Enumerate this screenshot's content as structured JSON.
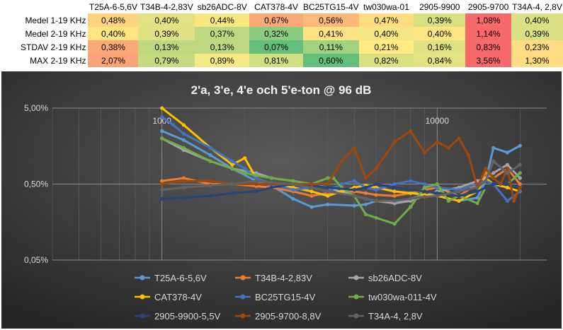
{
  "table": {
    "columns": [
      "T25A-6-5,6V",
      "T34B-4-2,83V",
      "sb26ADC-8V",
      "CAT378-4V",
      "BC25TG15-4V",
      "tw030wa-01",
      "2905-9900",
      "2905-9700",
      "T34A-4, 2,8V"
    ],
    "rows": [
      {
        "label": "Medel 1-19 KHz",
        "values": [
          "0,48%",
          "0,40%",
          "0,44%",
          "0,67%",
          "0,56%",
          "0,47%",
          "0,39%",
          "1,08%",
          "0,40%"
        ],
        "colors": [
          "#fdd37f",
          "#e3e283",
          "#f6e783",
          "#f9a977",
          "#fbb879",
          "#fedd81",
          "#d9e082",
          "#f8696b",
          "#dbe182"
        ]
      },
      {
        "label": "Medel 2-19 KHz",
        "values": [
          "0,40%",
          "0,39%",
          "0,37%",
          "0,32%",
          "0,41%",
          "0,40%",
          "0,40%",
          "1,14%",
          "0,39%"
        ],
        "colors": [
          "#fee582",
          "#dfe183",
          "#bdd881",
          "#8ccc7e",
          "#ffe283",
          "#f4e783",
          "#ffe483",
          "#f8696b",
          "#d7e082"
        ]
      },
      {
        "label": "STDAV 2-19 KHz",
        "values": [
          "0,38%",
          "0,13%",
          "0,13%",
          "0,07%",
          "0,11%",
          "0,21%",
          "0,16%",
          "0,83%",
          "0,23%"
        ],
        "colors": [
          "#fbaa77",
          "#bed881",
          "#bdd881",
          "#63be7b",
          "#a1d27f",
          "#feeb84",
          "#dfe182",
          "#f8696b",
          "#fedc81"
        ]
      },
      {
        "label": "MAX 2-19 KHz",
        "values": [
          "2,07%",
          "0,79%",
          "0,89%",
          "0,81%",
          "0,60%",
          "0,82%",
          "0,84%",
          "3,56%",
          "1,30%"
        ],
        "colors": [
          "#fba276",
          "#c5da81",
          "#f5e984",
          "#d1df82",
          "#63be7b",
          "#dbe182",
          "#e4e383",
          "#f8696b",
          "#fedd81"
        ]
      }
    ]
  },
  "chart_data": {
    "type": "line",
    "title": "2'a, 3'e, 4'e och 5'e-ton @ 96 dB",
    "xlabel": "",
    "ylabel": "",
    "x_scale": "log",
    "y_scale": "log",
    "xlim": [
      400,
      25000
    ],
    "ylim": [
      0.05,
      5
    ],
    "xticks": [
      1000,
      10000
    ],
    "xtick_labels": [
      "1000",
      "10000"
    ],
    "yticks": [
      5.0,
      0.5,
      0.05
    ],
    "ytick_labels": [
      "5,00%",
      "0,50%",
      "0,05%"
    ],
    "grid": true,
    "legend_position": "bottom",
    "series": [
      {
        "name": "T25A-6-5,6V",
        "color": "#5b9bd5",
        "x": [
          1000,
          1200,
          1500,
          1800,
          2200,
          2500,
          3000,
          3500,
          4000,
          5000,
          5500,
          6000,
          7000,
          8000,
          9000,
          10000,
          12000,
          14000,
          15000,
          16000,
          18000,
          20000
        ],
        "y": [
          2.5,
          1.9,
          1.2,
          0.8,
          0.55,
          0.48,
          0.32,
          0.25,
          0.27,
          0.26,
          0.27,
          0.3,
          0.28,
          0.32,
          0.36,
          0.35,
          0.3,
          0.33,
          0.55,
          1.5,
          1.3,
          1.6
        ]
      },
      {
        "name": "T34B-4-2,83V",
        "color": "#ed7d31",
        "x": [
          1000,
          1200,
          1500,
          1800,
          2200,
          2500,
          3000,
          3500,
          4000,
          5000,
          5500,
          6000,
          7000,
          8000,
          9000,
          10000,
          12000,
          14000,
          15000,
          16000,
          18000,
          20000
        ],
        "y": [
          0.55,
          0.6,
          0.5,
          0.5,
          0.47,
          0.45,
          0.4,
          0.35,
          0.38,
          0.4,
          0.38,
          0.36,
          0.35,
          0.38,
          0.42,
          0.45,
          0.35,
          0.5,
          0.7,
          0.6,
          0.8,
          0.5
        ]
      },
      {
        "name": "sb26ADC-8V",
        "color": "#a5a5a5",
        "x": [
          1000,
          1200,
          1500,
          1800,
          2200,
          2500,
          3000,
          3500,
          4000,
          5000,
          5500,
          6000,
          7000,
          8000,
          9000,
          10000,
          12000,
          14000,
          15000,
          16000,
          18000,
          20000
        ],
        "y": [
          2.0,
          1.4,
          1.0,
          0.8,
          0.7,
          0.6,
          0.55,
          0.5,
          0.45,
          0.35,
          0.32,
          0.3,
          0.28,
          0.3,
          0.35,
          0.4,
          0.45,
          0.55,
          0.6,
          0.7,
          0.9,
          0.6
        ]
      },
      {
        "name": "CAT378-4V",
        "color": "#ffc000",
        "x": [
          1000,
          1200,
          1500,
          1800,
          2000,
          2200,
          2500,
          3000,
          3500,
          4000,
          4500,
          5000,
          5500,
          6000,
          7000,
          8000,
          9000,
          10000,
          12000,
          14000,
          15000,
          16000,
          18000,
          20000
        ],
        "y": [
          5.0,
          3.0,
          1.5,
          0.9,
          1.1,
          0.6,
          0.5,
          0.45,
          0.4,
          0.35,
          0.4,
          0.45,
          0.48,
          0.45,
          0.4,
          0.38,
          0.36,
          0.35,
          0.3,
          0.4,
          0.6,
          0.5,
          0.45,
          0.4
        ]
      },
      {
        "name": "BC25TG15-4V",
        "color": "#4472c4",
        "x": [
          1000,
          1100,
          1200,
          1500,
          1800,
          2000,
          2200,
          2500,
          3000,
          3500,
          4000,
          4500,
          5000,
          5500,
          6000,
          7000,
          8000,
          9000,
          10000,
          12000,
          14000,
          15000,
          16000,
          18000,
          20000
        ],
        "y": [
          3.8,
          3.0,
          2.3,
          1.5,
          1.0,
          0.8,
          0.6,
          0.5,
          0.42,
          0.45,
          0.4,
          0.5,
          0.55,
          0.45,
          0.42,
          0.5,
          0.55,
          0.5,
          0.45,
          0.42,
          0.5,
          0.55,
          0.5,
          0.3,
          0.4
        ]
      },
      {
        "name": "tw030wa-011-4V",
        "color": "#70ad47",
        "x": [
          1000,
          1200,
          1500,
          1800,
          2000,
          2200,
          2500,
          3000,
          3500,
          4000,
          4200,
          4500,
          5000,
          5500,
          6000,
          7000,
          8000,
          9000,
          10000,
          11000,
          12000,
          14000,
          15000,
          16000,
          18000,
          20000
        ],
        "y": [
          2.0,
          1.5,
          1.0,
          0.8,
          0.7,
          0.65,
          0.6,
          0.55,
          0.5,
          0.6,
          0.6,
          0.45,
          0.35,
          0.2,
          0.18,
          0.15,
          0.25,
          0.45,
          0.5,
          0.3,
          0.35,
          0.28,
          0.45,
          0.5,
          0.5,
          0.7
        ]
      },
      {
        "name": "2905-9900-5,5V",
        "color": "#264478",
        "x": [
          1000,
          1200,
          1500,
          1800,
          2200,
          2500,
          3000,
          3500,
          4000,
          5000,
          5500,
          6000,
          7000,
          8000,
          9000,
          10000,
          12000,
          14000,
          15000,
          16000,
          18000,
          20000
        ],
        "y": [
          0.32,
          0.33,
          0.35,
          0.38,
          0.4,
          0.45,
          0.5,
          0.48,
          0.45,
          0.42,
          0.45,
          0.5,
          0.45,
          0.42,
          0.4,
          0.38,
          0.35,
          0.4,
          0.45,
          0.5,
          0.5,
          0.45
        ]
      },
      {
        "name": "2905-9700-8,8V",
        "color": "#9e480e",
        "x": [
          1000,
          1200,
          1500,
          1800,
          2200,
          2500,
          3000,
          3500,
          4000,
          4500,
          5000,
          5500,
          6000,
          7000,
          8000,
          9000,
          10000,
          11000,
          12000,
          13000,
          14000,
          15000,
          16000,
          17000,
          18000,
          19000,
          20000
        ],
        "y": [
          0.5,
          0.55,
          0.55,
          0.5,
          0.5,
          0.5,
          0.5,
          0.5,
          0.5,
          1.0,
          1.5,
          0.6,
          0.8,
          1.8,
          2.5,
          1.3,
          1.8,
          1.5,
          2.0,
          1.2,
          0.45,
          0.8,
          0.6,
          0.5,
          0.8,
          0.3,
          0.45
        ]
      },
      {
        "name": "T34A-4, 2,8V",
        "color": "#636363",
        "x": [
          1000,
          1200,
          1500,
          1800,
          2200,
          2500,
          3000,
          3500,
          4000,
          5000,
          5500,
          6000,
          7000,
          8000,
          9000,
          10000,
          12000,
          14000,
          15000,
          16000,
          18000,
          20000
        ],
        "y": [
          0.42,
          0.45,
          0.48,
          0.5,
          0.55,
          0.52,
          0.5,
          0.45,
          0.4,
          0.35,
          0.32,
          0.3,
          0.3,
          0.32,
          0.34,
          0.35,
          0.4,
          0.45,
          0.55,
          1.0,
          0.7,
          0.9
        ]
      }
    ]
  }
}
